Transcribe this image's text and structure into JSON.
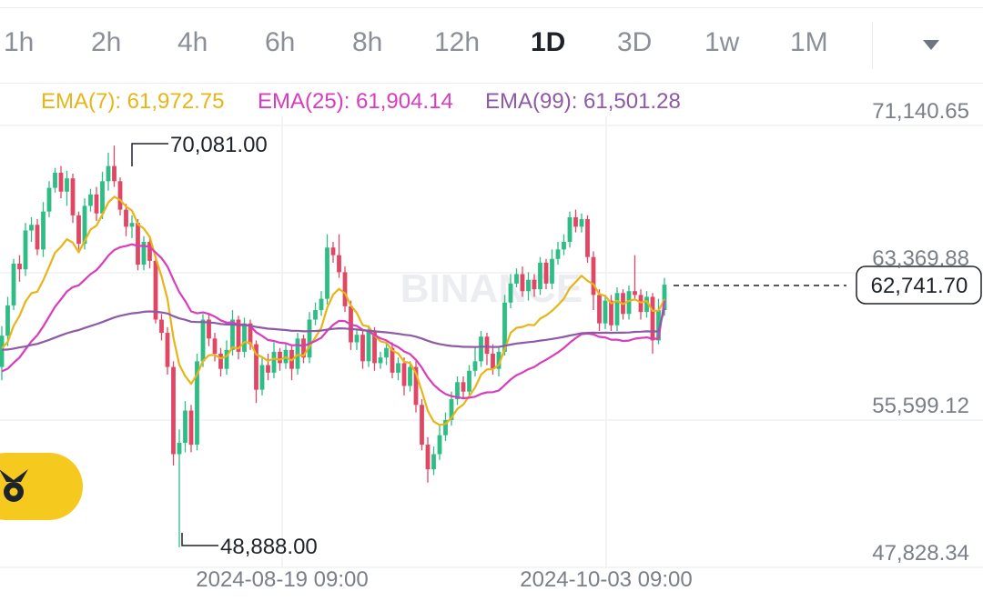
{
  "timeframes": [
    "1h",
    "2h",
    "4h",
    "6h",
    "8h",
    "12h",
    "1D",
    "3D",
    "1w",
    "1M"
  ],
  "active_timeframe": "1D",
  "menu_icon": "caret-down-icon",
  "fab_icon": "binance-assistant-icon",
  "watermark": "BINANCE",
  "ema_legend": [
    {
      "label": "EMA(7): 61,972.75",
      "color": "#e8b517"
    },
    {
      "label": "EMA(25): 61,904.14",
      "color": "#d93cbc"
    },
    {
      "label": "EMA(99): 61,501.28",
      "color": "#8e5aa6"
    }
  ],
  "price_labels": [
    "71,140.65",
    "63,369.88",
    "55,599.12",
    "47,828.34"
  ],
  "current_price": "62,741.70",
  "high_label": "70,081.00",
  "low_label": "48,888.00",
  "date_labels": [
    "2024-08-19 09:00",
    "2024-10-03 09:00"
  ],
  "colors": {
    "up": "#2ebd85",
    "down": "#e04765",
    "ema7": "#e8b517",
    "ema25": "#d93cbc",
    "ema99": "#8e5aa6"
  },
  "chart_data": {
    "type": "candlestick",
    "interval": "1D",
    "y_ticks": [
      71140.65,
      63369.88,
      55599.12,
      47828.34
    ],
    "current_price": 62741.7,
    "high": 70081.0,
    "low": 48888.0,
    "x_tick_labels": [
      "2024-08-19 09:00",
      "2024-10-03 09:00"
    ],
    "candles": [
      [
        58400,
        60050,
        60550,
        57700
      ],
      [
        60050,
        61650,
        62100,
        59500
      ],
      [
        61650,
        63850,
        64100,
        61400
      ],
      [
        63850,
        63550,
        64300,
        62900
      ],
      [
        63550,
        65600,
        66000,
        63200
      ],
      [
        65600,
        65900,
        66300,
        65000
      ],
      [
        65900,
        64600,
        66200,
        64300
      ],
      [
        64600,
        66600,
        67100,
        64200
      ],
      [
        66600,
        67850,
        68200,
        66300
      ],
      [
        67850,
        68650,
        68900,
        67600
      ],
      [
        68650,
        67650,
        69000,
        67300
      ],
      [
        67650,
        68350,
        68750,
        66900
      ],
      [
        68350,
        66400,
        68600,
        66000
      ],
      [
        66400,
        64900,
        66600,
        64600
      ],
      [
        64900,
        66900,
        67300,
        64600
      ],
      [
        66900,
        67500,
        67800,
        66600
      ],
      [
        67500,
        66500,
        67900,
        66100
      ],
      [
        66500,
        68200,
        68700,
        66200
      ],
      [
        68200,
        69000,
        69700,
        67700
      ],
      [
        69000,
        68200,
        70081,
        67900
      ],
      [
        68200,
        66700,
        68400,
        66400
      ],
      [
        66700,
        65800,
        67000,
        65300
      ],
      [
        65800,
        66000,
        66400,
        65200
      ],
      [
        66000,
        63800,
        66200,
        63500
      ],
      [
        63800,
        65000,
        65300,
        63500
      ],
      [
        65000,
        64000,
        65300,
        63600
      ],
      [
        64000,
        60900,
        64200,
        60700
      ],
      [
        60900,
        60200,
        61200,
        59800
      ],
      [
        60200,
        58400,
        60500,
        58000
      ],
      [
        58400,
        53800,
        58700,
        53200
      ],
      [
        53800,
        54400,
        55100,
        48888
      ],
      [
        54400,
        56100,
        56600,
        53900
      ],
      [
        56100,
        54300,
        56400,
        53900
      ],
      [
        54300,
        58700,
        59100,
        54000
      ],
      [
        58700,
        60900,
        61200,
        58400
      ],
      [
        60900,
        59900,
        61200,
        59500
      ],
      [
        59900,
        59100,
        60200,
        58700
      ],
      [
        59100,
        58300,
        59400,
        57900
      ],
      [
        58300,
        59300,
        59800,
        58000
      ],
      [
        59300,
        60900,
        61400,
        59000
      ],
      [
        60900,
        59200,
        61100,
        58800
      ],
      [
        59200,
        60700,
        61000,
        58900
      ],
      [
        60700,
        59600,
        60900,
        59300
      ],
      [
        59600,
        57200,
        59800,
        56500
      ],
      [
        57200,
        58500,
        58900,
        56900
      ],
      [
        58500,
        58100,
        59100,
        57700
      ],
      [
        58100,
        59200,
        59700,
        57800
      ],
      [
        59200,
        58600,
        59400,
        58200
      ],
      [
        58600,
        59300,
        59600,
        58300
      ],
      [
        59300,
        58300,
        59500,
        57700
      ],
      [
        58300,
        59900,
        60200,
        58000
      ],
      [
        59900,
        58900,
        60100,
        58600
      ],
      [
        58900,
        60900,
        61300,
        58600
      ],
      [
        60900,
        61400,
        61800,
        60600
      ],
      [
        61400,
        62000,
        62400,
        61100
      ],
      [
        62000,
        64700,
        65400,
        61700
      ],
      [
        64700,
        64300,
        65000,
        63900
      ],
      [
        64300,
        63400,
        65400,
        63100
      ],
      [
        63400,
        61600,
        63700,
        61300
      ],
      [
        61600,
        59700,
        61900,
        59300
      ],
      [
        59700,
        60100,
        60400,
        59300
      ],
      [
        60100,
        58700,
        60400,
        58300
      ],
      [
        58700,
        60300,
        60600,
        58400
      ],
      [
        60300,
        58600,
        60500,
        58200
      ],
      [
        58600,
        58900,
        59200,
        58300
      ],
      [
        58900,
        59400,
        59700,
        58500
      ],
      [
        59400,
        58100,
        59700,
        57800
      ],
      [
        58100,
        58600,
        58900,
        57700
      ],
      [
        58600,
        57400,
        58900,
        56900
      ],
      [
        57400,
        58400,
        58700,
        57100
      ],
      [
        58400,
        56400,
        58700,
        56000
      ],
      [
        56400,
        54300,
        56700,
        54000
      ],
      [
        54300,
        53000,
        54700,
        52300
      ],
      [
        53000,
        53800,
        54200,
        52700
      ],
      [
        53800,
        54800,
        55300,
        53500
      ],
      [
        54800,
        55600,
        56000,
        54500
      ],
      [
        55600,
        56700,
        57100,
        55300
      ],
      [
        56700,
        57600,
        57900,
        56400
      ],
      [
        57600,
        57100,
        57900,
        56700
      ],
      [
        57100,
        58200,
        58500,
        56800
      ],
      [
        58200,
        58700,
        59500,
        57900
      ],
      [
        58700,
        60000,
        60300,
        58400
      ],
      [
        60000,
        59100,
        60200,
        58500
      ],
      [
        59100,
        58300,
        59600,
        58000
      ],
      [
        58300,
        59200,
        59500,
        57900
      ],
      [
        59200,
        61800,
        62200,
        59000
      ],
      [
        61800,
        62800,
        63300,
        61500
      ],
      [
        62800,
        63300,
        63600,
        62600
      ],
      [
        63300,
        62400,
        63700,
        62100
      ],
      [
        62400,
        63000,
        63400,
        61900
      ],
      [
        63000,
        62500,
        63300,
        62100
      ],
      [
        62500,
        63900,
        64200,
        62200
      ],
      [
        63900,
        62800,
        64100,
        62500
      ],
      [
        62800,
        64100,
        64600,
        62500
      ],
      [
        64100,
        64600,
        65000,
        63800
      ],
      [
        64600,
        65000,
        65400,
        64300
      ],
      [
        65000,
        66300,
        66600,
        64700
      ],
      [
        66300,
        65800,
        66700,
        65500
      ],
      [
        65800,
        66200,
        66500,
        65500
      ],
      [
        66200,
        64200,
        66400,
        63900
      ],
      [
        64200,
        62200,
        64500,
        61400
      ],
      [
        62200,
        60700,
        62500,
        60300
      ],
      [
        60700,
        61900,
        62200,
        60400
      ],
      [
        61900,
        60600,
        62200,
        60300
      ],
      [
        60600,
        62300,
        62600,
        60300
      ],
      [
        62300,
        61200,
        62500,
        60900
      ],
      [
        61200,
        62400,
        62700,
        60900
      ],
      [
        62400,
        62200,
        64300,
        61900
      ],
      [
        62200,
        61300,
        62500,
        60900
      ],
      [
        61300,
        62100,
        62400,
        61000
      ],
      [
        62100,
        59800,
        62300,
        59100
      ],
      [
        59800,
        61400,
        62000,
        59600
      ],
      [
        61400,
        62741.7,
        63100,
        61100
      ]
    ],
    "ema_series": [
      {
        "name": "EMA(7)",
        "last": 61972.75,
        "values": [
          59390,
          59720,
          60580,
          61100,
          61850,
          62290,
          62370,
          62970,
          63690,
          64430,
          64740,
          65140,
          64960,
          64450,
          65040,
          65650,
          65860,
          66440,
          67080,
          67380,
          67210,
          66860,
          66650,
          65930,
          65700,
          65270,
          64170,
          63180,
          61990,
          59950,
          58520,
          57920,
          57510,
          58000,
          58720,
          59020,
          59040,
          58850,
          58960,
          59440,
          59380,
          59710,
          59680,
          59060,
          58920,
          58720,
          58840,
          58790,
          58910,
          58750,
          59040,
          59000,
          59480,
          59960,
          60470,
          61530,
          62220,
          62520,
          62290,
          61640,
          61250,
          60610,
          60530,
          60050,
          59760,
          59670,
          59280,
          59110,
          58680,
          58610,
          58060,
          57120,
          56090,
          55520,
          55340,
          55400,
          55720,
          56190,
          56420,
          56860,
          57320,
          57990,
          58270,
          58280,
          58510,
          59330,
          60200,
          60470,
          60510,
          60630,
          60600,
          60950,
          61120,
          61360,
          61660,
          62000,
          62560,
          62880,
          63210,
          62950,
          62760,
          62240,
          62150,
          61760,
          61890,
          61720,
          61890,
          61970,
          61800,
          61880,
          61360,
          61370,
          61972.75
        ]
      },
      {
        "name": "EMA(25)",
        "last": 61904.14,
        "values": [
          58170,
          58310,
          58620,
          58900,
          59330,
          59750,
          60080,
          60540,
          61060,
          61580,
          61970,
          62380,
          62610,
          62710,
          63000,
          63300,
          63510,
          63870,
          64270,
          64570,
          64720,
          64780,
          64870,
          64780,
          64790,
          64730,
          64440,
          64140,
          63700,
          63000,
          62350,
          61880,
          61330,
          61230,
          61280,
          61200,
          61060,
          60860,
          60740,
          60750,
          60630,
          60640,
          60570,
          60230,
          60040,
          59820,
          59770,
          59680,
          59650,
          59540,
          59560,
          59510,
          59630,
          59770,
          59940,
          60310,
          60620,
          60830,
          60820,
          60630,
          60570,
          60360,
          60280,
          60080,
          59910,
          59800,
          59600,
          59450,
          59220,
          59080,
          58780,
          58360,
          57850,
          57460,
          57180,
          56970,
          56860,
          56810,
          56750,
          56780,
          56830,
          56980,
          57060,
          57070,
          57160,
          57440,
          57740,
          57970,
          58110,
          58280,
          58400,
          58610,
          58780,
          58970,
          59170,
          59400,
          59680,
          59920,
          60130,
          60160,
          60120,
          59990,
          59960,
          59840,
          59840,
          59770,
          59790,
          59890,
          59930,
          59960,
          59890,
          59890,
          61904.14
        ]
      },
      {
        "name": "EMA(99)",
        "last": 61501.28,
        "values": [
          59300,
          59320,
          59370,
          59430,
          59480,
          59560,
          59620,
          59720,
          59830,
          59950,
          60070,
          60180,
          60270,
          60350,
          60460,
          60560,
          60660,
          60770,
          60890,
          61010,
          61100,
          61170,
          61230,
          61260,
          61310,
          61330,
          61310,
          61280,
          61220,
          61080,
          60960,
          60890,
          60790,
          60770,
          60770,
          60750,
          60720,
          60670,
          60640,
          60640,
          60610,
          60610,
          60580,
          60510,
          60470,
          60420,
          60400,
          60370,
          60350,
          60310,
          60310,
          60280,
          60290,
          60300,
          60320,
          60370,
          60410,
          60440,
          60430,
          60400,
          60380,
          60340,
          60320,
          60280,
          60250,
          60230,
          60190,
          60150,
          60100,
          60070,
          60000,
          59900,
          59780,
          59680,
          59610,
          59550,
          59510,
          59490,
          59460,
          59460,
          59450,
          59470,
          59470,
          59450,
          59460,
          59520,
          59580,
          59640,
          59670,
          59710,
          59740,
          59790,
          59830,
          59880,
          59930,
          59990,
          60060,
          60120,
          60180,
          60200,
          60210,
          60200,
          60210,
          60200,
          60210,
          60210,
          60220,
          60250,
          60260,
          60280,
          60270,
          60280,
          61501.28
        ]
      }
    ]
  }
}
